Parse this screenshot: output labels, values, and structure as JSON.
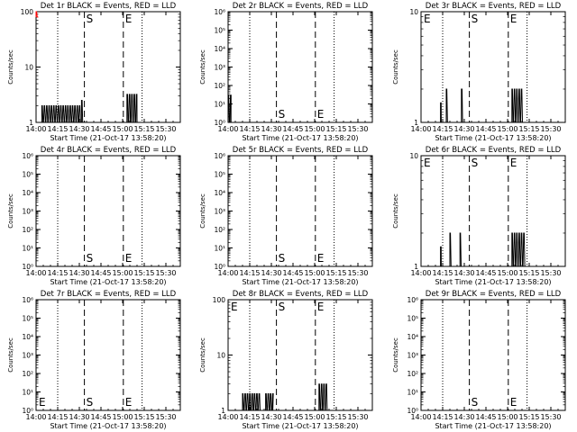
{
  "window": {
    "background": "#ffffff",
    "foreground": "#000000",
    "accent_red": "#ff0000"
  },
  "chart_data": [
    {
      "type": "line",
      "title": "Det 1r BLACK = Events, RED = LLD",
      "xlabel": "Start Time (21-Oct-17 13:58:20)",
      "ylabel": "Counts/sec",
      "ylog": true,
      "ylim": [
        1,
        100
      ],
      "yticks": [
        {
          "v": 1,
          "label": "1"
        },
        {
          "v": 10,
          "label": "10"
        },
        {
          "v": 100,
          "label": "100"
        }
      ],
      "xticks": [
        {
          "v": 0,
          "label": "14:00"
        },
        {
          "v": 15,
          "label": "14:15"
        },
        {
          "v": 30,
          "label": "14:30"
        },
        {
          "v": 45,
          "label": "14:45"
        },
        {
          "v": 60,
          "label": "15:00"
        },
        {
          "v": 75,
          "label": "15:15"
        },
        {
          "v": 90,
          "label": "15:30"
        }
      ],
      "xlim": [
        0,
        100
      ],
      "dotted_lines": [
        15,
        73.5
      ],
      "dashed_lines": [
        33.5,
        60.5
      ],
      "markers": [
        {
          "label": "S",
          "x": 33.5,
          "pos": "top"
        },
        {
          "label": "E",
          "x": 60.5,
          "pos": "top"
        }
      ],
      "series": [
        {
          "color": "#000000",
          "segments": [
            {
              "x0": 4,
              "x1": 31,
              "v0": 1,
              "v1": 2
            },
            {
              "x0": 31.5,
              "x1": 32.5,
              "v0": 1,
              "v1": 2.5
            },
            {
              "x0": 63,
              "x1": 70,
              "v0": 1,
              "v1": 3.2
            }
          ]
        },
        {
          "color": "#ff0000",
          "segments": [
            {
              "x0": 0,
              "x1": 1.5,
              "v0": 80,
              "v1": 100
            }
          ]
        }
      ]
    },
    {
      "type": "line",
      "title": "Det 2r BLACK = Events, RED = LLD",
      "xlabel": "Start Time (21-Oct-17 13:58:20)",
      "ylabel": "Counts/sec",
      "ylog": true,
      "ylim": [
        1,
        1000000
      ],
      "yticks": [
        {
          "v": 1,
          "label": "10⁰"
        },
        {
          "v": 10,
          "label": "10¹"
        },
        {
          "v": 100,
          "label": "10²"
        },
        {
          "v": 1000,
          "label": "10³"
        },
        {
          "v": 10000,
          "label": "10⁴"
        },
        {
          "v": 100000,
          "label": "10⁵"
        },
        {
          "v": 1000000,
          "label": "10⁶"
        }
      ],
      "xticks": [
        {
          "v": 0,
          "label": "14:00"
        },
        {
          "v": 15,
          "label": "14:15"
        },
        {
          "v": 30,
          "label": "14:30"
        },
        {
          "v": 45,
          "label": "14:45"
        },
        {
          "v": 60,
          "label": "15:00"
        },
        {
          "v": 75,
          "label": "15:15"
        },
        {
          "v": 90,
          "label": "15:30"
        }
      ],
      "xlim": [
        0,
        100
      ],
      "dotted_lines": [
        15,
        73.5
      ],
      "dashed_lines": [
        33.5,
        60.5
      ],
      "markers": [
        {
          "label": "S",
          "x": 33.5,
          "pos": "bottom"
        },
        {
          "label": "E",
          "x": 60.5,
          "pos": "bottom"
        }
      ],
      "series": [
        {
          "color": "#000000",
          "segments": [
            {
              "x0": 0,
              "x1": 2,
              "v0": 1,
              "v1": 30
            }
          ]
        }
      ]
    },
    {
      "type": "line",
      "title": "Det 3r BLACK = Events, RED = LLD",
      "xlabel": "Start Time (21-Oct-17 13:58:20)",
      "ylabel": "Counts/sec",
      "ylog": true,
      "ylim": [
        1,
        10
      ],
      "yticks": [
        {
          "v": 1,
          "label": "1"
        },
        {
          "v": 10,
          "label": "10"
        }
      ],
      "xticks": [
        {
          "v": 0,
          "label": "14:00"
        },
        {
          "v": 15,
          "label": "14:15"
        },
        {
          "v": 30,
          "label": "14:30"
        },
        {
          "v": 45,
          "label": "14:45"
        },
        {
          "v": 60,
          "label": "15:00"
        },
        {
          "v": 75,
          "label": "15:15"
        },
        {
          "v": 90,
          "label": "15:30"
        }
      ],
      "xlim": [
        0,
        100
      ],
      "dotted_lines": [
        15,
        73.5
      ],
      "dashed_lines": [
        33.5,
        60.5
      ],
      "markers": [
        {
          "label": "E",
          "x": 0,
          "pos": "top"
        },
        {
          "label": "S",
          "x": 33.5,
          "pos": "top"
        },
        {
          "label": "E",
          "x": 60.5,
          "pos": "top"
        }
      ],
      "series": [
        {
          "color": "#000000",
          "segments": [
            {
              "x0": 13.5,
              "x1": 14,
              "v0": 1,
              "v1": 1.5
            },
            {
              "x0": 17.5,
              "x1": 18.5,
              "v0": 1,
              "v1": 2
            },
            {
              "x0": 28,
              "x1": 29,
              "v0": 1,
              "v1": 2
            },
            {
              "x0": 63,
              "x1": 71,
              "v0": 1,
              "v1": 2
            }
          ]
        }
      ]
    },
    {
      "type": "line",
      "title": "Det 4r BLACK = Events, RED = LLD",
      "xlabel": "Start Time (21-Oct-17 13:58:20)",
      "ylabel": "Counts/sec",
      "ylog": true,
      "ylim": [
        1,
        1000000
      ],
      "yticks": [
        {
          "v": 1,
          "label": "10⁰"
        },
        {
          "v": 10,
          "label": "10¹"
        },
        {
          "v": 100,
          "label": "10²"
        },
        {
          "v": 1000,
          "label": "10³"
        },
        {
          "v": 10000,
          "label": "10⁴"
        },
        {
          "v": 100000,
          "label": "10⁵"
        },
        {
          "v": 1000000,
          "label": "10⁶"
        }
      ],
      "xticks": [
        {
          "v": 0,
          "label": "14:00"
        },
        {
          "v": 15,
          "label": "14:15"
        },
        {
          "v": 30,
          "label": "14:30"
        },
        {
          "v": 45,
          "label": "14:45"
        },
        {
          "v": 60,
          "label": "15:00"
        },
        {
          "v": 75,
          "label": "15:15"
        },
        {
          "v": 90,
          "label": "15:30"
        }
      ],
      "xlim": [
        0,
        100
      ],
      "dotted_lines": [
        15,
        73.5
      ],
      "dashed_lines": [
        33.5,
        60.5
      ],
      "markers": [
        {
          "label": "S",
          "x": 33.5,
          "pos": "bottom"
        },
        {
          "label": "E",
          "x": 60.5,
          "pos": "bottom"
        }
      ],
      "series": []
    },
    {
      "type": "line",
      "title": "Det 5r BLACK = Events, RED = LLD",
      "xlabel": "Start Time (21-Oct-17 13:58:20)",
      "ylabel": "Counts/sec",
      "ylog": true,
      "ylim": [
        1,
        1000000
      ],
      "yticks": [
        {
          "v": 1,
          "label": "10⁰"
        },
        {
          "v": 10,
          "label": "10¹"
        },
        {
          "v": 100,
          "label": "10²"
        },
        {
          "v": 1000,
          "label": "10³"
        },
        {
          "v": 10000,
          "label": "10⁴"
        },
        {
          "v": 100000,
          "label": "10⁵"
        },
        {
          "v": 1000000,
          "label": "10⁶"
        }
      ],
      "xticks": [
        {
          "v": 0,
          "label": "14:00"
        },
        {
          "v": 15,
          "label": "14:15"
        },
        {
          "v": 30,
          "label": "14:30"
        },
        {
          "v": 45,
          "label": "14:45"
        },
        {
          "v": 60,
          "label": "15:00"
        },
        {
          "v": 75,
          "label": "15:15"
        },
        {
          "v": 90,
          "label": "15:30"
        }
      ],
      "xlim": [
        0,
        100
      ],
      "dotted_lines": [
        15,
        73.5
      ],
      "dashed_lines": [
        33.5,
        60.5
      ],
      "markers": [
        {
          "label": "S",
          "x": 33.5,
          "pos": "bottom"
        },
        {
          "label": "E",
          "x": 60.5,
          "pos": "bottom"
        }
      ],
      "series": []
    },
    {
      "type": "line",
      "title": "Det 6r BLACK = Events, RED = LLD",
      "xlabel": "Start Time (21-Oct-17 13:58:20)",
      "ylabel": "Counts/sec",
      "ylog": true,
      "ylim": [
        1,
        10
      ],
      "yticks": [
        {
          "v": 1,
          "label": "1"
        },
        {
          "v": 10,
          "label": "10"
        }
      ],
      "xticks": [
        {
          "v": 0,
          "label": "14:00"
        },
        {
          "v": 15,
          "label": "14:15"
        },
        {
          "v": 30,
          "label": "14:30"
        },
        {
          "v": 45,
          "label": "14:45"
        },
        {
          "v": 60,
          "label": "15:00"
        },
        {
          "v": 75,
          "label": "15:15"
        },
        {
          "v": 90,
          "label": "15:30"
        }
      ],
      "xlim": [
        0,
        100
      ],
      "dotted_lines": [
        15,
        73.5
      ],
      "dashed_lines": [
        33.5,
        60.5
      ],
      "markers": [
        {
          "label": "E",
          "x": 0,
          "pos": "top"
        },
        {
          "label": "S",
          "x": 33.5,
          "pos": "top"
        },
        {
          "label": "E",
          "x": 60.5,
          "pos": "top"
        }
      ],
      "series": [
        {
          "color": "#000000",
          "segments": [
            {
              "x0": 13.5,
              "x1": 14,
              "v0": 1,
              "v1": 1.5
            },
            {
              "x0": 20,
              "x1": 21,
              "v0": 1,
              "v1": 2
            },
            {
              "x0": 27,
              "x1": 28.5,
              "v0": 1,
              "v1": 2
            },
            {
              "x0": 63,
              "x1": 72,
              "v0": 1,
              "v1": 2
            }
          ]
        }
      ]
    },
    {
      "type": "line",
      "title": "Det 7r BLACK = Events, RED = LLD",
      "xlabel": "Start Time (21-Oct-17 13:58:20)",
      "ylabel": "Counts/sec",
      "ylog": true,
      "ylim": [
        1,
        1000000
      ],
      "yticks": [
        {
          "v": 1,
          "label": "10⁰"
        },
        {
          "v": 10,
          "label": "10¹"
        },
        {
          "v": 100,
          "label": "10²"
        },
        {
          "v": 1000,
          "label": "10³"
        },
        {
          "v": 10000,
          "label": "10⁴"
        },
        {
          "v": 100000,
          "label": "10⁵"
        },
        {
          "v": 1000000,
          "label": "10⁶"
        }
      ],
      "xticks": [
        {
          "v": 0,
          "label": "14:00"
        },
        {
          "v": 15,
          "label": "14:15"
        },
        {
          "v": 30,
          "label": "14:30"
        },
        {
          "v": 45,
          "label": "14:45"
        },
        {
          "v": 60,
          "label": "15:00"
        },
        {
          "v": 75,
          "label": "15:15"
        },
        {
          "v": 90,
          "label": "15:30"
        }
      ],
      "xlim": [
        0,
        100
      ],
      "dotted_lines": [
        15,
        73.5
      ],
      "dashed_lines": [
        33.5,
        60.5
      ],
      "markers": [
        {
          "label": "E",
          "x": 0,
          "pos": "bottom"
        },
        {
          "label": "S",
          "x": 33.5,
          "pos": "bottom"
        },
        {
          "label": "E",
          "x": 60.5,
          "pos": "bottom"
        }
      ],
      "series": []
    },
    {
      "type": "line",
      "title": "Det 8r BLACK = Events, RED = LLD",
      "xlabel": "Start Time (21-Oct-17 13:58:20)",
      "ylabel": "Counts/sec",
      "ylog": true,
      "ylim": [
        1,
        100
      ],
      "yticks": [
        {
          "v": 1,
          "label": "1"
        },
        {
          "v": 10,
          "label": "10"
        },
        {
          "v": 100,
          "label": "100"
        }
      ],
      "xticks": [
        {
          "v": 0,
          "label": "14:00"
        },
        {
          "v": 15,
          "label": "14:15"
        },
        {
          "v": 30,
          "label": "14:30"
        },
        {
          "v": 45,
          "label": "14:45"
        },
        {
          "v": 60,
          "label": "15:00"
        },
        {
          "v": 75,
          "label": "15:15"
        },
        {
          "v": 90,
          "label": "15:30"
        }
      ],
      "xlim": [
        0,
        100
      ],
      "dotted_lines": [
        15,
        73.5
      ],
      "dashed_lines": [
        33.5,
        60.5
      ],
      "markers": [
        {
          "label": "E",
          "x": 0,
          "pos": "top"
        },
        {
          "label": "S",
          "x": 33.5,
          "pos": "top"
        },
        {
          "label": "E",
          "x": 60.5,
          "pos": "top"
        }
      ],
      "series": [
        {
          "color": "#000000",
          "segments": [
            {
              "x0": 10,
              "x1": 23,
              "v0": 1,
              "v1": 2
            },
            {
              "x0": 26,
              "x1": 31,
              "v0": 1,
              "v1": 2
            },
            {
              "x0": 63,
              "x1": 69,
              "v0": 1,
              "v1": 3
            }
          ]
        }
      ]
    },
    {
      "type": "line",
      "title": "Det 9r BLACK = Events, RED = LLD",
      "xlabel": "Start Time (21-Oct-17 13:58:20)",
      "ylabel": "Counts/sec",
      "ylog": true,
      "ylim": [
        1,
        1000000
      ],
      "yticks": [
        {
          "v": 1,
          "label": "10⁰"
        },
        {
          "v": 10,
          "label": "10¹"
        },
        {
          "v": 100,
          "label": "10²"
        },
        {
          "v": 1000,
          "label": "10³"
        },
        {
          "v": 10000,
          "label": "10⁴"
        },
        {
          "v": 100000,
          "label": "10⁵"
        },
        {
          "v": 1000000,
          "label": "10⁶"
        }
      ],
      "xticks": [
        {
          "v": 0,
          "label": "14:00"
        },
        {
          "v": 15,
          "label": "14:15"
        },
        {
          "v": 30,
          "label": "14:30"
        },
        {
          "v": 45,
          "label": "14:45"
        },
        {
          "v": 60,
          "label": "15:00"
        },
        {
          "v": 75,
          "label": "15:15"
        },
        {
          "v": 90,
          "label": "15:30"
        }
      ],
      "xlim": [
        0,
        100
      ],
      "dotted_lines": [
        15,
        73.5
      ],
      "dashed_lines": [
        33.5,
        60.5
      ],
      "markers": [
        {
          "label": "S",
          "x": 33.5,
          "pos": "bottom"
        },
        {
          "label": "E",
          "x": 60.5,
          "pos": "bottom"
        }
      ],
      "series": []
    }
  ]
}
